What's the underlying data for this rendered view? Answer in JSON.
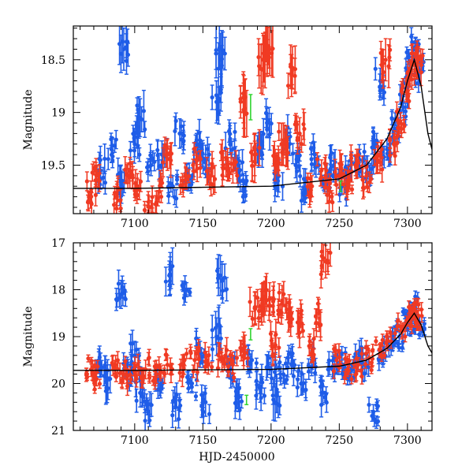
{
  "chart_data": [
    {
      "type": "scatter",
      "panel": "top",
      "title": "",
      "xlabel": "",
      "ylabel": "Magnitude",
      "xlim": [
        7055,
        7318
      ],
      "ylim": [
        18.18,
        19.96
      ],
      "y_inverted": true,
      "xticks": [
        7100,
        7150,
        7200,
        7250,
        7300
      ],
      "yticks": [
        18.5,
        19,
        19.5
      ],
      "ytick_labels": [
        "18.5",
        "19",
        "19.5"
      ],
      "colors": {
        "blue": "#1f5de8",
        "red": "#f03a23",
        "green": "#2fd42f",
        "model": "#000000"
      },
      "model_curve": {
        "name": "model",
        "x": [
          7055,
          7100,
          7150,
          7200,
          7250,
          7270,
          7285,
          7295,
          7300,
          7305,
          7310,
          7315,
          7318
        ],
        "y": [
          19.72,
          19.72,
          19.71,
          19.7,
          19.63,
          19.5,
          19.25,
          18.95,
          18.7,
          18.5,
          18.75,
          19.2,
          19.35
        ]
      },
      "series": [
        {
          "name": "blue",
          "color": "#1f5de8",
          "points": [
            [
              7075,
              19.55,
              0.14
            ],
            [
              7083,
              19.35,
              0.12
            ],
            [
              7090,
              19.65,
              0.15
            ],
            [
              7092,
              18.4,
              0.2
            ],
            [
              7100,
              19.3,
              0.12
            ],
            [
              7104,
              19.05,
              0.18
            ],
            [
              7112,
              19.5,
              0.1
            ],
            [
              7120,
              19.4,
              0.13
            ],
            [
              7128,
              19.7,
              0.1
            ],
            [
              7133,
              19.2,
              0.14
            ],
            [
              7140,
              19.6,
              0.12
            ],
            [
              7146,
              19.3,
              0.13
            ],
            [
              7152,
              19.45,
              0.14
            ],
            [
              7160,
              18.9,
              0.2
            ],
            [
              7163,
              18.5,
              0.25
            ],
            [
              7170,
              19.25,
              0.15
            ],
            [
              7176,
              19.55,
              0.12
            ],
            [
              7180,
              19.75,
              0.1
            ],
            [
              7190,
              19.35,
              0.13
            ],
            [
              7197,
              19.1,
              0.14
            ],
            [
              7205,
              19.65,
              0.15
            ],
            [
              7212,
              19.25,
              0.12
            ],
            [
              7218,
              19.5,
              0.12
            ],
            [
              7225,
              19.75,
              0.1
            ],
            [
              7232,
              19.4,
              0.12
            ],
            [
              7240,
              19.6,
              0.1
            ],
            [
              7246,
              19.5,
              0.12
            ],
            [
              7252,
              19.7,
              0.08
            ],
            [
              7258,
              19.55,
              0.1
            ],
            [
              7265,
              19.45,
              0.1
            ],
            [
              7272,
              19.6,
              0.1
            ],
            [
              7276,
              19.3,
              0.1
            ],
            [
              7280,
              18.7,
              0.12
            ],
            [
              7285,
              19.35,
              0.1
            ],
            [
              7292,
              19.15,
              0.1
            ],
            [
              7297,
              18.95,
              0.1
            ],
            [
              7300,
              18.7,
              0.08
            ],
            [
              7303,
              18.55,
              0.08
            ],
            [
              7306,
              18.4,
              0.08
            ],
            [
              7309,
              18.6,
              0.1
            ]
          ]
        },
        {
          "name": "red",
          "color": "#f03a23",
          "points": [
            [
              7068,
              19.75,
              0.1
            ],
            [
              7072,
              19.6,
              0.1
            ],
            [
              7087,
              19.8,
              0.12
            ],
            [
              7095,
              19.6,
              0.12
            ],
            [
              7102,
              19.7,
              0.12
            ],
            [
              7110,
              19.85,
              0.1
            ],
            [
              7118,
              19.75,
              0.1
            ],
            [
              7124,
              19.4,
              0.15
            ],
            [
              7137,
              19.6,
              0.12
            ],
            [
              7145,
              19.45,
              0.12
            ],
            [
              7156,
              19.6,
              0.12
            ],
            [
              7165,
              19.5,
              0.14
            ],
            [
              7172,
              19.55,
              0.12
            ],
            [
              7180,
              18.9,
              0.25
            ],
            [
              7188,
              19.4,
              0.2
            ],
            [
              7194,
              18.5,
              0.25
            ],
            [
              7199,
              18.4,
              0.25
            ],
            [
              7203,
              19.5,
              0.15
            ],
            [
              7209,
              19.3,
              0.2
            ],
            [
              7215,
              18.65,
              0.2
            ],
            [
              7221,
              19.2,
              0.15
            ],
            [
              7230,
              19.7,
              0.1
            ],
            [
              7237,
              19.55,
              0.1
            ],
            [
              7243,
              19.75,
              0.1
            ],
            [
              7250,
              19.6,
              0.12
            ],
            [
              7256,
              19.65,
              0.1
            ],
            [
              7262,
              19.5,
              0.1
            ],
            [
              7270,
              19.6,
              0.1
            ],
            [
              7278,
              19.45,
              0.12
            ],
            [
              7284,
              18.5,
              0.2
            ],
            [
              7290,
              19.3,
              0.1
            ],
            [
              7295,
              19.1,
              0.1
            ],
            [
              7299,
              18.8,
              0.1
            ],
            [
              7302,
              18.6,
              0.1
            ],
            [
              7305,
              18.55,
              0.1
            ],
            [
              7308,
              18.5,
              0.12
            ]
          ]
        },
        {
          "name": "green",
          "color": "#2fd42f",
          "points": [
            [
              7185,
              18.95,
              0.12
            ],
            [
              7251,
              19.7,
              0.05
            ]
          ]
        }
      ]
    },
    {
      "type": "scatter",
      "panel": "bottom",
      "title": "",
      "xlabel": "HJD-2450000",
      "ylabel": "Magnitude",
      "xlim": [
        7055,
        7318
      ],
      "ylim": [
        17,
        21
      ],
      "y_inverted": true,
      "xticks": [
        7100,
        7150,
        7200,
        7250,
        7300
      ],
      "yticks": [
        17,
        18,
        19,
        20,
        21
      ],
      "ytick_labels": [
        "17",
        "18",
        "19",
        "20",
        "21"
      ],
      "colors": {
        "blue": "#1f5de8",
        "red": "#f03a23",
        "green": "#2fd42f",
        "model": "#000000"
      },
      "model_curve": {
        "name": "model",
        "x": [
          7055,
          7100,
          7150,
          7200,
          7250,
          7270,
          7285,
          7295,
          7300,
          7305,
          7310,
          7315,
          7318
        ],
        "y": [
          19.72,
          19.72,
          19.71,
          19.7,
          19.63,
          19.5,
          19.25,
          18.95,
          18.7,
          18.5,
          18.75,
          19.2,
          19.35
        ]
      },
      "series": [
        {
          "name": "blue",
          "color": "#1f5de8",
          "points": [
            [
              7075,
              19.6,
              0.25
            ],
            [
              7082,
              19.9,
              0.3
            ],
            [
              7090,
              18.1,
              0.3
            ],
            [
              7095,
              19.8,
              0.25
            ],
            [
              7100,
              19.4,
              0.3
            ],
            [
              7104,
              20.2,
              0.3
            ],
            [
              7110,
              20.6,
              0.25
            ],
            [
              7118,
              19.9,
              0.2
            ],
            [
              7126,
              17.7,
              0.4
            ],
            [
              7130,
              20.5,
              0.3
            ],
            [
              7138,
              18.0,
              0.15
            ],
            [
              7142,
              20.0,
              0.2
            ],
            [
              7148,
              19.3,
              0.2
            ],
            [
              7152,
              20.4,
              0.3
            ],
            [
              7160,
              19.0,
              0.4
            ],
            [
              7164,
              17.8,
              0.4
            ],
            [
              7170,
              19.7,
              0.2
            ],
            [
              7176,
              20.3,
              0.3
            ],
            [
              7186,
              19.5,
              0.2
            ],
            [
              7192,
              20.1,
              0.3
            ],
            [
              7200,
              19.7,
              0.3
            ],
            [
              7203,
              20.4,
              0.4
            ],
            [
              7209,
              19.8,
              0.2
            ],
            [
              7215,
              19.6,
              0.2
            ],
            [
              7222,
              20.0,
              0.25
            ],
            [
              7230,
              19.5,
              0.2
            ],
            [
              7238,
              20.2,
              0.25
            ],
            [
              7245,
              19.7,
              0.2
            ],
            [
              7252,
              19.6,
              0.2
            ],
            [
              7258,
              19.8,
              0.15
            ],
            [
              7264,
              19.5,
              0.2
            ],
            [
              7270,
              19.6,
              0.2
            ],
            [
              7275,
              20.6,
              0.15
            ],
            [
              7282,
              19.4,
              0.2
            ],
            [
              7288,
              19.2,
              0.2
            ],
            [
              7294,
              19.0,
              0.15
            ],
            [
              7300,
              18.7,
              0.12
            ],
            [
              7303,
              18.6,
              0.12
            ],
            [
              7306,
              18.4,
              0.12
            ],
            [
              7309,
              18.7,
              0.15
            ]
          ]
        },
        {
          "name": "red",
          "color": "#f03a23",
          "points": [
            [
              7068,
              19.7,
              0.15
            ],
            [
              7072,
              19.9,
              0.15
            ],
            [
              7086,
              19.6,
              0.2
            ],
            [
              7092,
              19.8,
              0.2
            ],
            [
              7100,
              19.75,
              0.2
            ],
            [
              7108,
              19.7,
              0.2
            ],
            [
              7116,
              19.8,
              0.2
            ],
            [
              7124,
              19.6,
              0.2
            ],
            [
              7136,
              19.6,
              0.2
            ],
            [
              7144,
              19.5,
              0.2
            ],
            [
              7154,
              19.6,
              0.2
            ],
            [
              7164,
              19.5,
              0.25
            ],
            [
              7172,
              19.6,
              0.2
            ],
            [
              7180,
              19.4,
              0.3
            ],
            [
              7188,
              18.4,
              0.35
            ],
            [
              7194,
              18.2,
              0.35
            ],
            [
              7199,
              18.2,
              0.35
            ],
            [
              7203,
              19.2,
              0.3
            ],
            [
              7208,
              18.3,
              0.3
            ],
            [
              7214,
              18.5,
              0.3
            ],
            [
              7220,
              18.7,
              0.3
            ],
            [
              7228,
              19.2,
              0.2
            ],
            [
              7235,
              18.5,
              0.3
            ],
            [
              7240,
              17.4,
              0.35
            ],
            [
              7248,
              19.5,
              0.15
            ],
            [
              7256,
              19.7,
              0.15
            ],
            [
              7264,
              19.6,
              0.15
            ],
            [
              7272,
              19.45,
              0.15
            ],
            [
              7280,
              19.3,
              0.15
            ],
            [
              7288,
              19.1,
              0.15
            ],
            [
              7296,
              18.9,
              0.15
            ],
            [
              7302,
              18.6,
              0.15
            ],
            [
              7305,
              18.5,
              0.15
            ],
            [
              7308,
              18.55,
              0.15
            ]
          ]
        },
        {
          "name": "green",
          "color": "#2fd42f",
          "points": [
            [
              7185,
              18.95,
              0.12
            ],
            [
              7182,
              20.35,
              0.1
            ]
          ]
        }
      ]
    }
  ]
}
